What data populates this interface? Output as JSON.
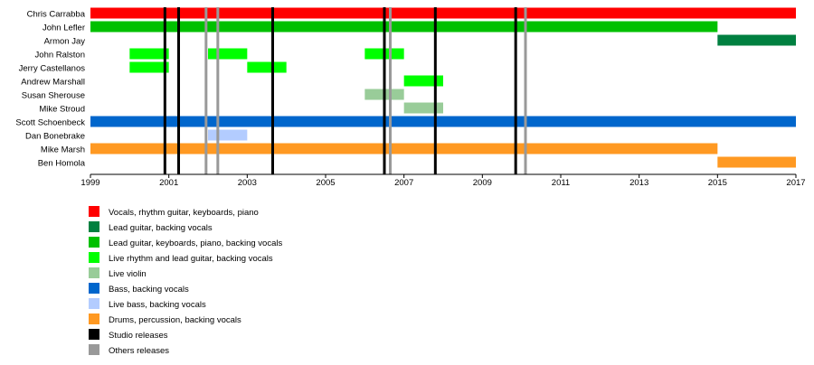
{
  "chart_data": {
    "type": "bar",
    "title": "",
    "xlabel": "",
    "ylabel": "",
    "xlim": [
      1999,
      2017
    ],
    "x_ticks": [
      1999,
      2001,
      2003,
      2005,
      2007,
      2009,
      2011,
      2013,
      2015,
      2017
    ],
    "x_tick_labels": [
      "1999",
      "2001",
      "2003",
      "2005",
      "2007",
      "2009",
      "2011",
      "2013",
      "2015",
      "2017"
    ],
    "members": [
      "Chris Carrabba",
      "John Lefler",
      "Armon Jay",
      "John Ralston",
      "Jerry Castellanos",
      "Andrew Marshall",
      "Susan Sherouse",
      "Mike Stroud",
      "Scott Schoenbeck",
      "Dan Bonebrake",
      "Mike Marsh",
      "Ben Homola"
    ],
    "roles": [
      {
        "key": "vocals",
        "label": "Vocals, rhythm guitar, keyboards, piano",
        "color": "#ff0000"
      },
      {
        "key": "lead",
        "label": "Lead guitar, backing vocals",
        "color": "#008040"
      },
      {
        "key": "leadkeys",
        "label": "Lead guitar, keyboards, piano, backing vocals",
        "color": "#00c000"
      },
      {
        "key": "liverhythm",
        "label": "Live rhythm and lead guitar, backing vocals",
        "color": "#00ff00"
      },
      {
        "key": "violin",
        "label": "Live violin",
        "color": "#99cc99"
      },
      {
        "key": "bass",
        "label": "Bass, backing vocals",
        "color": "#0066cc"
      },
      {
        "key": "livebass",
        "label": "Live bass, backing vocals",
        "color": "#b3ccff"
      },
      {
        "key": "drums",
        "label": "Drums, percussion, backing vocals",
        "color": "#ff9922"
      },
      {
        "key": "studio",
        "label": "Studio releases",
        "color": "#000000"
      },
      {
        "key": "others",
        "label": "Others releases",
        "color": "#999999"
      }
    ],
    "bars": [
      {
        "member": 0,
        "role": "vocals",
        "start": 1999,
        "end": 2017
      },
      {
        "member": 1,
        "role": "leadkeys",
        "start": 1999,
        "end": 2015
      },
      {
        "member": 2,
        "role": "lead",
        "start": 2015,
        "end": 2017
      },
      {
        "member": 3,
        "role": "liverhythm",
        "start": 2000,
        "end": 2001
      },
      {
        "member": 3,
        "role": "liverhythm",
        "start": 2002,
        "end": 2003
      },
      {
        "member": 3,
        "role": "liverhythm",
        "start": 2006,
        "end": 2007
      },
      {
        "member": 4,
        "role": "liverhythm",
        "start": 2000,
        "end": 2001
      },
      {
        "member": 4,
        "role": "liverhythm",
        "start": 2003,
        "end": 2004
      },
      {
        "member": 5,
        "role": "liverhythm",
        "start": 2007,
        "end": 2008
      },
      {
        "member": 6,
        "role": "violin",
        "start": 2006,
        "end": 2007
      },
      {
        "member": 7,
        "role": "violin",
        "start": 2007,
        "end": 2008
      },
      {
        "member": 8,
        "role": "bass",
        "start": 1999,
        "end": 2017
      },
      {
        "member": 9,
        "role": "livebass",
        "start": 2002,
        "end": 2003
      },
      {
        "member": 10,
        "role": "drums",
        "start": 1999,
        "end": 2015
      },
      {
        "member": 11,
        "role": "drums",
        "start": 2015,
        "end": 2017
      }
    ],
    "releases": [
      {
        "role": "studio",
        "x": 2000.9
      },
      {
        "role": "studio",
        "x": 2001.25
      },
      {
        "role": "studio",
        "x": 2003.65
      },
      {
        "role": "studio",
        "x": 2006.5
      },
      {
        "role": "studio",
        "x": 2007.8
      },
      {
        "role": "studio",
        "x": 2009.85
      },
      {
        "role": "others",
        "x": 2001.95
      },
      {
        "role": "others",
        "x": 2002.25
      },
      {
        "role": "others",
        "x": 2006.65
      },
      {
        "role": "others",
        "x": 2010.1
      }
    ],
    "grid": false,
    "legend_position": "bottom-left"
  }
}
